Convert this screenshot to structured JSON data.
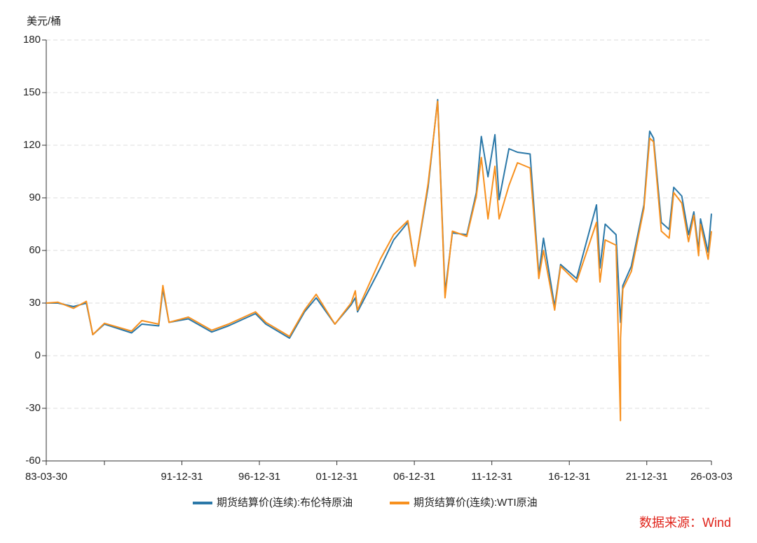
{
  "chart_data": {
    "type": "line",
    "y_axis_label": "美元/桶",
    "source": "数据来源：Wind",
    "x": [
      "83-03-30",
      "84-01-01",
      "85-01-01",
      "85-11-01",
      "86-04-01",
      "87-01-01",
      "88-10-01",
      "89-06-01",
      "90-07-01",
      "90-10-10",
      "91-03-01",
      "92-06-01",
      "93-12-01",
      "95-01-01",
      "96-10-01",
      "97-06-01",
      "98-12-10",
      "99-12-01",
      "00-09-01",
      "01-11-15",
      "02-12-01",
      "03-03-10",
      "03-05-01",
      "04-10-20",
      "05-08-30",
      "06-08-01",
      "07-01-15",
      "07-11-20",
      "08-07-03",
      "08-12-24",
      "09-06-15",
      "10-05-20",
      "10-12-31",
      "11-04-28",
      "11-10-01",
      "12-03-13",
      "12-06-21",
      "13-02-08",
      "13-08-28",
      "14-06-20",
      "15-01-13",
      "15-05-01",
      "16-01-20",
      "16-06-08",
      "17-06-21",
      "18-10-03",
      "18-12-24",
      "19-04-25",
      "20-01-06",
      "20-04-20",
      "20-04-21",
      "20-06-15",
      "21-01-01",
      "21-10-25",
      "22-03-08",
      "22-06-08",
      "22-12-09",
      "23-06-12",
      "23-09-27",
      "24-04-05",
      "24-09-10",
      "25-01-15",
      "25-05-05",
      "25-06-20",
      "25-12-16",
      "26-03-03"
    ],
    "series": [
      {
        "name": "期货结算价(连续):布伦特原油",
        "color": "#2b78a8",
        "values": [
          30,
          30,
          28,
          30,
          12,
          18,
          13,
          18,
          17,
          38,
          19,
          21,
          13.5,
          17,
          24,
          18,
          10,
          25,
          33,
          18,
          29,
          33,
          25,
          50,
          66,
          76,
          51,
          96,
          146,
          36,
          70,
          69,
          93,
          125,
          102,
          126,
          89,
          118,
          116,
          115,
          46,
          67,
          28,
          52,
          44,
          86,
          50,
          75,
          69,
          20,
          19,
          40,
          51,
          86,
          128,
          124,
          76,
          72,
          96,
          91,
          69,
          82,
          60,
          78,
          59,
          81
        ]
      },
      {
        "name": "期货结算价(连续):WTI原油",
        "color": "#f7901e",
        "values": [
          30,
          30.5,
          27,
          31,
          12,
          18.5,
          14,
          20,
          18,
          40,
          19,
          22,
          14.5,
          18,
          25,
          19,
          11,
          26,
          35,
          18,
          30,
          37,
          26,
          55,
          69,
          77,
          51,
          98,
          145,
          33,
          71,
          68,
          91,
          113,
          78,
          108,
          78,
          97,
          110,
          107,
          44,
          60,
          26,
          51,
          42,
          76,
          42,
          66,
          63,
          -37,
          10,
          38,
          48,
          84,
          124,
          122,
          71,
          67,
          93,
          87,
          65,
          80,
          57,
          75,
          55,
          71
        ]
      }
    ],
    "xticks": [
      {
        "value": "83-03-30",
        "label": "83-03-30"
      },
      {
        "value": "86-12-31",
        "label": null
      },
      {
        "value": "91-12-31",
        "label": "91-12-31"
      },
      {
        "value": "96-12-31",
        "label": "96-12-31"
      },
      {
        "value": "01-12-31",
        "label": "01-12-31"
      },
      {
        "value": "06-12-31",
        "label": "06-12-31"
      },
      {
        "value": "11-12-31",
        "label": "11-12-31"
      },
      {
        "value": "16-12-31",
        "label": "16-12-31"
      },
      {
        "value": "21-12-31",
        "label": "21-12-31"
      },
      {
        "value": "26-03-03",
        "label": "26-03-03"
      }
    ],
    "xlim": [
      "83-03-30",
      "26-03-03"
    ],
    "ylim": [
      -60,
      180
    ],
    "yticks": [
      -60,
      -30,
      0,
      30,
      60,
      90,
      120,
      150,
      180
    ],
    "grid": true,
    "legend": "bottom"
  }
}
